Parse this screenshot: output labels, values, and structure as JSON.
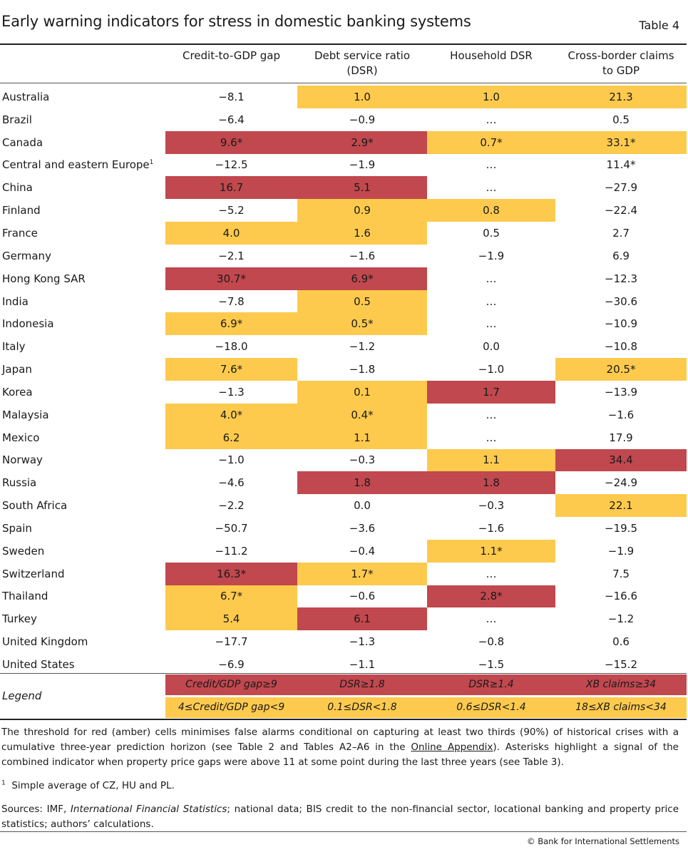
{
  "title": "Early warning indicators for stress in domestic banking systems",
  "table_label": "Table 4",
  "headers": {
    "col0": "",
    "col1": "Credit-to-GDP gap",
    "col2_line1": "Debt service ratio",
    "col2_line2": "(DSR)",
    "col3": "Household DSR",
    "col4_line1": "Cross-border claims",
    "col4_line2": "to GDP"
  },
  "rows": [
    {
      "country": "Australia",
      "cells": [
        {
          "v": "−8.1",
          "c": ""
        },
        {
          "v": "1.0",
          "c": "amber"
        },
        {
          "v": "1.0",
          "c": "amber"
        },
        {
          "v": "21.3",
          "c": "amber"
        }
      ]
    },
    {
      "country": "Brazil",
      "cells": [
        {
          "v": "−6.4",
          "c": ""
        },
        {
          "v": "−0.9",
          "c": ""
        },
        {
          "v": "…",
          "c": ""
        },
        {
          "v": "0.5",
          "c": ""
        }
      ]
    },
    {
      "country": "Canada",
      "cells": [
        {
          "v": "9.6*",
          "c": "red"
        },
        {
          "v": "2.9*",
          "c": "red"
        },
        {
          "v": "0.7*",
          "c": "amber"
        },
        {
          "v": "33.1*",
          "c": "amber"
        }
      ]
    },
    {
      "country": "Central and eastern Europe",
      "sup": "1",
      "cells": [
        {
          "v": "−12.5",
          "c": ""
        },
        {
          "v": "−1.9",
          "c": ""
        },
        {
          "v": "…",
          "c": ""
        },
        {
          "v": "11.4*",
          "c": ""
        }
      ]
    },
    {
      "country": "China",
      "cells": [
        {
          "v": "16.7",
          "c": "red"
        },
        {
          "v": "5.1",
          "c": "red"
        },
        {
          "v": "…",
          "c": ""
        },
        {
          "v": "−27.9",
          "c": ""
        }
      ]
    },
    {
      "country": "Finland",
      "cells": [
        {
          "v": "−5.2",
          "c": ""
        },
        {
          "v": "0.9",
          "c": "amber"
        },
        {
          "v": "0.8",
          "c": "amber"
        },
        {
          "v": "−22.4",
          "c": ""
        }
      ]
    },
    {
      "country": "France",
      "cells": [
        {
          "v": "4.0",
          "c": "amber"
        },
        {
          "v": "1.6",
          "c": "amber"
        },
        {
          "v": "0.5",
          "c": ""
        },
        {
          "v": "2.7",
          "c": ""
        }
      ]
    },
    {
      "country": "Germany",
      "cells": [
        {
          "v": "−2.1",
          "c": ""
        },
        {
          "v": "−1.6",
          "c": ""
        },
        {
          "v": "−1.9",
          "c": ""
        },
        {
          "v": "6.9",
          "c": ""
        }
      ]
    },
    {
      "country": "Hong Kong SAR",
      "cells": [
        {
          "v": "30.7*",
          "c": "red"
        },
        {
          "v": "6.9*",
          "c": "red"
        },
        {
          "v": "…",
          "c": ""
        },
        {
          "v": "−12.3",
          "c": ""
        }
      ]
    },
    {
      "country": "India",
      "cells": [
        {
          "v": "−7.8",
          "c": ""
        },
        {
          "v": "0.5",
          "c": "amber"
        },
        {
          "v": "…",
          "c": ""
        },
        {
          "v": "−30.6",
          "c": ""
        }
      ]
    },
    {
      "country": "Indonesia",
      "cells": [
        {
          "v": "6.9*",
          "c": "amber"
        },
        {
          "v": "0.5*",
          "c": "amber"
        },
        {
          "v": "…",
          "c": ""
        },
        {
          "v": "−10.9",
          "c": ""
        }
      ]
    },
    {
      "country": "Italy",
      "cells": [
        {
          "v": "−18.0",
          "c": ""
        },
        {
          "v": "−1.2",
          "c": ""
        },
        {
          "v": "0.0",
          "c": ""
        },
        {
          "v": "−10.8",
          "c": ""
        }
      ]
    },
    {
      "country": "Japan",
      "cells": [
        {
          "v": "7.6*",
          "c": "amber"
        },
        {
          "v": "−1.8",
          "c": ""
        },
        {
          "v": "−1.0",
          "c": ""
        },
        {
          "v": "20.5*",
          "c": "amber"
        }
      ]
    },
    {
      "country": "Korea",
      "cells": [
        {
          "v": "−1.3",
          "c": ""
        },
        {
          "v": "0.1",
          "c": "amber"
        },
        {
          "v": "1.7",
          "c": "red"
        },
        {
          "v": "−13.9",
          "c": ""
        }
      ]
    },
    {
      "country": "Malaysia",
      "cells": [
        {
          "v": "4.0*",
          "c": "amber"
        },
        {
          "v": "0.4*",
          "c": "amber"
        },
        {
          "v": "…",
          "c": ""
        },
        {
          "v": "−1.6",
          "c": ""
        }
      ]
    },
    {
      "country": "Mexico",
      "cells": [
        {
          "v": "6.2",
          "c": "amber"
        },
        {
          "v": "1.1",
          "c": "amber"
        },
        {
          "v": "…",
          "c": ""
        },
        {
          "v": "17.9",
          "c": ""
        }
      ]
    },
    {
      "country": "Norway",
      "cells": [
        {
          "v": "−1.0",
          "c": ""
        },
        {
          "v": "−0.3",
          "c": ""
        },
        {
          "v": "1.1",
          "c": "amber"
        },
        {
          "v": "34.4",
          "c": "red"
        }
      ]
    },
    {
      "country": "Russia",
      "cells": [
        {
          "v": "−4.6",
          "c": ""
        },
        {
          "v": "1.8",
          "c": "red"
        },
        {
          "v": "1.8",
          "c": "red"
        },
        {
          "v": "−24.9",
          "c": ""
        }
      ]
    },
    {
      "country": "South Africa",
      "cells": [
        {
          "v": "−2.2",
          "c": ""
        },
        {
          "v": "0.0",
          "c": ""
        },
        {
          "v": "−0.3",
          "c": ""
        },
        {
          "v": "22.1",
          "c": "amber"
        }
      ]
    },
    {
      "country": "Spain",
      "cells": [
        {
          "v": "−50.7",
          "c": ""
        },
        {
          "v": "−3.6",
          "c": ""
        },
        {
          "v": "−1.6",
          "c": ""
        },
        {
          "v": "−19.5",
          "c": ""
        }
      ]
    },
    {
      "country": "Sweden",
      "cells": [
        {
          "v": "−11.2",
          "c": ""
        },
        {
          "v": "−0.4",
          "c": ""
        },
        {
          "v": "1.1*",
          "c": "amber"
        },
        {
          "v": "−1.9",
          "c": ""
        }
      ]
    },
    {
      "country": "Switzerland",
      "cells": [
        {
          "v": "16.3*",
          "c": "red"
        },
        {
          "v": "1.7*",
          "c": "amber"
        },
        {
          "v": "…",
          "c": ""
        },
        {
          "v": "7.5",
          "c": ""
        }
      ]
    },
    {
      "country": "Thailand",
      "cells": [
        {
          "v": "6.7*",
          "c": "amber"
        },
        {
          "v": "−0.6",
          "c": ""
        },
        {
          "v": "2.8*",
          "c": "red"
        },
        {
          "v": "−16.6",
          "c": ""
        }
      ]
    },
    {
      "country": "Turkey",
      "cells": [
        {
          "v": "5.4",
          "c": "amber"
        },
        {
          "v": "6.1",
          "c": "red"
        },
        {
          "v": "…",
          "c": ""
        },
        {
          "v": "−1.2",
          "c": ""
        }
      ]
    },
    {
      "country": "United Kingdom",
      "cells": [
        {
          "v": "−17.7",
          "c": ""
        },
        {
          "v": "−1.3",
          "c": ""
        },
        {
          "v": "−0.8",
          "c": ""
        },
        {
          "v": "0.6",
          "c": ""
        }
      ]
    },
    {
      "country": "United States",
      "cells": [
        {
          "v": "−6.9",
          "c": ""
        },
        {
          "v": "−1.1",
          "c": ""
        },
        {
          "v": "−1.5",
          "c": ""
        },
        {
          "v": "−15.2",
          "c": ""
        }
      ]
    }
  ],
  "legend": {
    "label": "Legend",
    "red": [
      "Credit/GDP gap≥9",
      "DSR≥1.8",
      "DSR≥1.4",
      "XB claims≥34"
    ],
    "amber": [
      "4≤Credit/GDP gap<9",
      "0.1≤DSR<1.8",
      "0.6≤DSR<1.4",
      "18≤XB claims<34"
    ]
  },
  "colors": {
    "red": "#c0484e",
    "amber": "#fdca4e"
  },
  "notes": {
    "threshold_part1": "The threshold for red (amber) cells minimises false alarms conditional on capturing at least two thirds (90%) of historical crises with a cumulative three-year prediction horizon (see Table 2 and Tables A2–A6 in the",
    "threshold_link": "Online Appendix",
    "threshold_part2": "). Asterisks highlight a signal of the combined indicator when property price gaps were above 11 at some point during the last three years (see Table 3).",
    "footnote_mark": "1",
    "footnote_text": "Simple average of CZ, HU and PL.",
    "sources_prefix": "Sources: IMF, ",
    "sources_italic": "International Financial Statistics",
    "sources_rest": "; national data; BIS credit to the non-financial sector, locational banking and property price statistics; authors’ calculations."
  },
  "copyright": "© Bank for International Settlements"
}
